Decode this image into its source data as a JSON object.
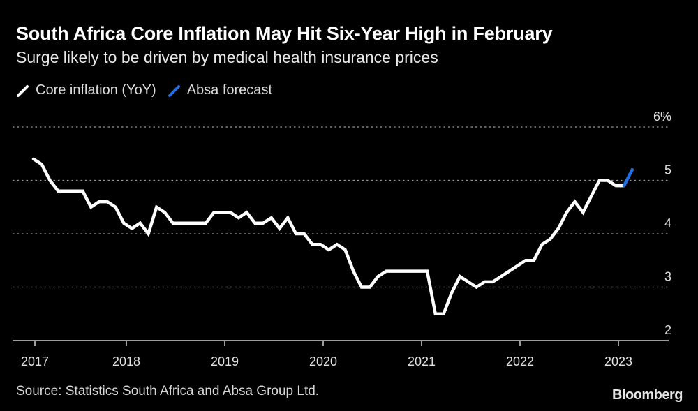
{
  "header": {
    "title": "South Africa Core Inflation May Hit Six-Year High in February",
    "subtitle": "Surge likely to be driven by medical health insurance prices"
  },
  "legend": [
    {
      "label": "Core inflation (YoY)",
      "color": "#ffffff"
    },
    {
      "label": "Absa forecast",
      "color": "#1f6fe5"
    }
  ],
  "footer": {
    "source": "Source: Statistics South Africa and Absa Group Ltd.",
    "brand": "Bloomberg"
  },
  "chart_data": {
    "type": "line",
    "title": "South Africa Core Inflation May Hit Six-Year High in February",
    "subtitle": "Surge likely to be driven by medical health insurance prices",
    "xlabel": "",
    "ylabel": "",
    "ylim": [
      2,
      6
    ],
    "y_ticks": [
      "6%",
      "5",
      "4",
      "3",
      "2"
    ],
    "y_tick_values": [
      6,
      5,
      4,
      3,
      2
    ],
    "y_axis_position": "right",
    "grid": true,
    "legend_position": "top-left",
    "x_ticks": [
      "2017",
      "2018",
      "2019",
      "2020",
      "2021",
      "2022",
      "2023"
    ],
    "x_start": "2017-01",
    "series": [
      {
        "name": "Core inflation (YoY)",
        "color": "#ffffff",
        "start": "2017-01",
        "values": [
          5.4,
          5.3,
          5.0,
          4.8,
          4.8,
          4.8,
          4.8,
          4.5,
          4.6,
          4.6,
          4.5,
          4.2,
          4.1,
          4.2,
          4.0,
          4.5,
          4.4,
          4.2,
          4.2,
          4.2,
          4.2,
          4.2,
          4.4,
          4.4,
          4.4,
          4.3,
          4.4,
          4.2,
          4.2,
          4.3,
          4.1,
          4.3,
          4.0,
          4.0,
          3.8,
          3.8,
          3.7,
          3.8,
          3.7,
          3.3,
          3.0,
          3.0,
          3.2,
          3.3,
          3.3,
          3.3,
          3.3,
          3.3,
          3.3,
          2.5,
          2.5,
          2.9,
          3.2,
          3.1,
          3.0,
          3.1,
          3.1,
          3.2,
          3.3,
          3.4,
          3.5,
          3.5,
          3.8,
          3.9,
          4.1,
          4.4,
          4.6,
          4.4,
          4.7,
          5.0,
          5.0,
          4.9,
          4.9
        ]
      },
      {
        "name": "Absa forecast",
        "color": "#1f6fe5",
        "start": "2023-01",
        "values": [
          4.9,
          5.2
        ]
      }
    ]
  }
}
